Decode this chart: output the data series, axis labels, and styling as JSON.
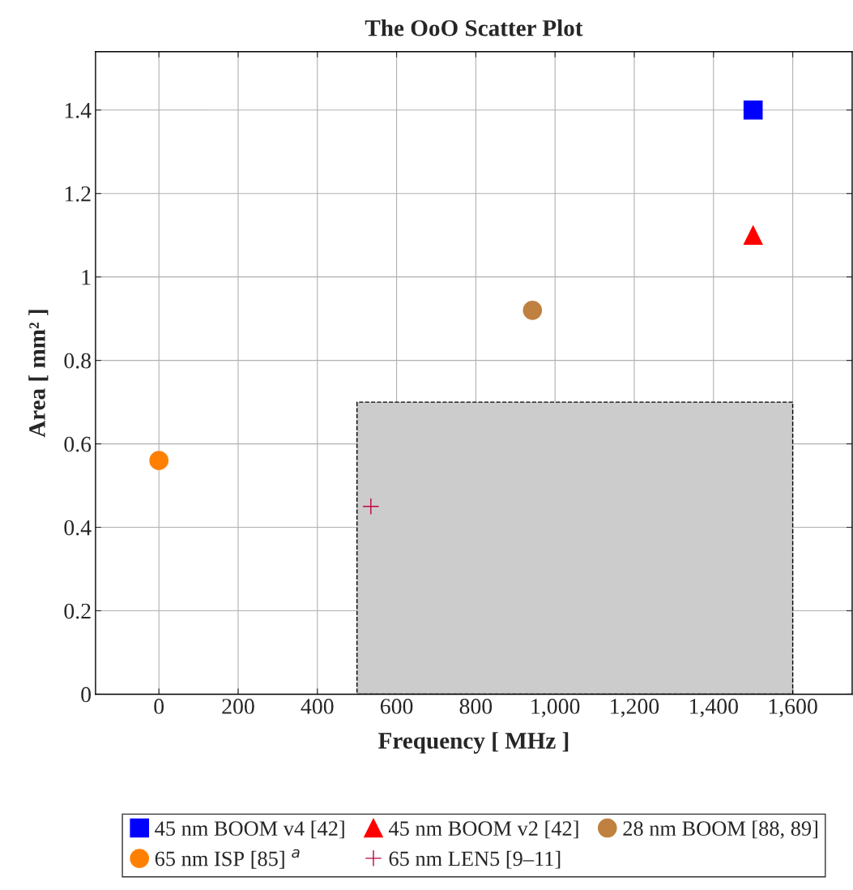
{
  "chart_data": {
    "type": "scatter",
    "title": "The OoO Scatter Plot",
    "xlabel": "Frequency [ MHz ]",
    "ylabel": "Area [ mm² ]",
    "xlim": [
      -160,
      1750
    ],
    "ylim": [
      0,
      1.54
    ],
    "xticks": [
      0,
      200,
      400,
      600,
      800,
      {
        "value": 1000,
        "label": "1,000"
      },
      {
        "value": 1200,
        "label": "1,200"
      },
      {
        "value": 1400,
        "label": "1,400"
      },
      {
        "value": 1600,
        "label": "1,600"
      }
    ],
    "yticks": [
      0,
      0.2,
      0.4,
      0.6,
      0.8,
      {
        "value": 1,
        "label": "1"
      },
      1.2,
      1.4
    ],
    "grid": true,
    "legend": "bottom",
    "series": [
      {
        "type": "area",
        "color": "#cccccc",
        "line_style": "dashed",
        "x": [
          500,
          1600
        ],
        "values": [
          0.7,
          0.7
        ]
      },
      {
        "name": "45 nm BOOM v4 [42]",
        "color": "#0000ff",
        "marker": "square",
        "x": [
          1500
        ],
        "values": [
          1.4
        ]
      },
      {
        "name": "45 nm BOOM v2 [42]",
        "color": "#ff0000",
        "marker": "triangle",
        "x": [
          1500
        ],
        "values": [
          1.1
        ]
      },
      {
        "name": "28 nm BOOM [88, 89]",
        "color": "#bf8040",
        "marker": "circle",
        "x": [
          943
        ],
        "values": [
          0.92
        ]
      },
      {
        "name": "65 nm ISP [85] $^{a}$",
        "color": "#ff8000",
        "marker": "circle",
        "x": [
          0
        ],
        "values": [
          0.56
        ]
      },
      {
        "name": "65 nm LEN5 [9–11]",
        "color": "#bf0040",
        "marker": "cross",
        "x": [
          535
        ],
        "values": [
          0.45
        ]
      }
    ]
  }
}
